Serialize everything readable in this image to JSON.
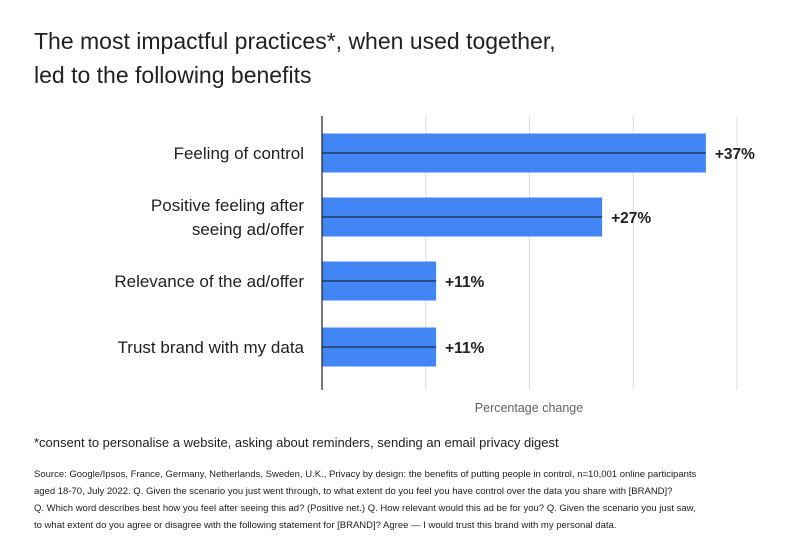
{
  "title_lines": [
    "The most impactful practices*, when used together,",
    "led to the following benefits"
  ],
  "footnote": "*consent to personalise a website, asking about reminders, sending an email privacy digest",
  "source_lines": [
    "Source: Google/Ipsos, France, Germany, Netherlands, Sweden, U.K., Privacy by design: the benefits of putting people in control, n=10,001 online participants",
    "aged 18-70, July 2022. Q. Given the scenario you just went through, to what extent do you feel you have control over the data you share with [BRAND]?",
    "Q. Which word describes best how you feel after seeing this ad? (Positive net.) Q. How relevant would this ad be for you? Q. Given the scenario you just saw,",
    "to what extent do you agree or disagree with the following statement for [BRAND]? Agree — I would trust this brand with my personal data."
  ],
  "colors": {
    "bar": "#4285f4",
    "grid": "#dadce0",
    "axis": "#202124"
  },
  "chart_data": {
    "type": "bar",
    "orientation": "horizontal",
    "categories": [
      [
        "Feeling of control"
      ],
      [
        "Positive feeling after",
        "seeing ad/offer"
      ],
      [
        "Relevance of the ad/offer"
      ],
      [
        "Trust brand with my data"
      ]
    ],
    "values": [
      37,
      27,
      11,
      11
    ],
    "data_labels": [
      "+37%",
      "+27%",
      "+11%",
      "+11%"
    ],
    "xlabel": "Percentage change",
    "xlim": [
      0,
      40
    ],
    "grid": true
  }
}
